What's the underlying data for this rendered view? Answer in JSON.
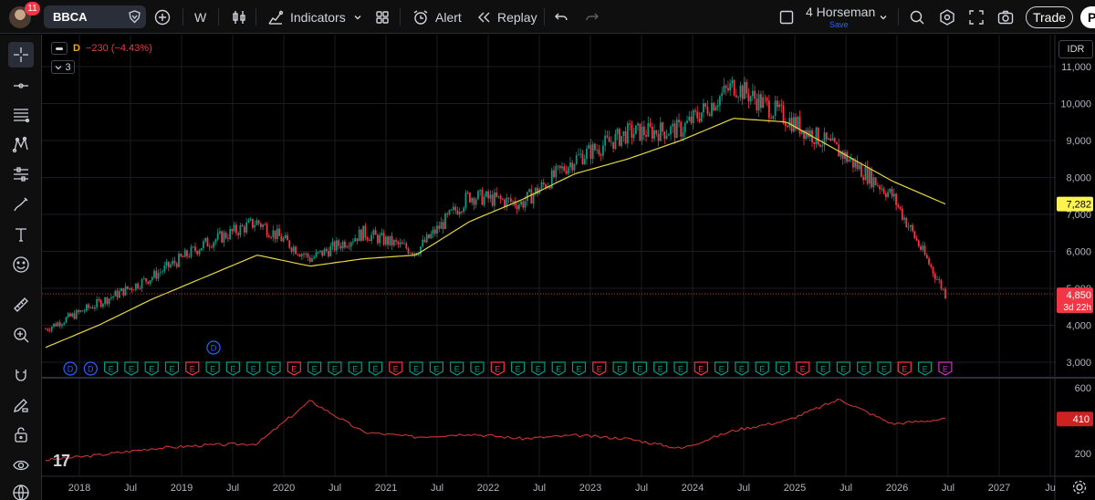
{
  "toolbar": {
    "notification_count": "11",
    "symbol": "BBCA",
    "interval": "W",
    "indicators_label": "Indicators",
    "alert_label": "Alert",
    "replay_label": "Replay",
    "layout_name": "4 Horseman",
    "save_label": "Save",
    "trade_label": "Trade",
    "publish_label": "P"
  },
  "legend": {
    "timeframe": "D",
    "change": "−230 (−4.43%)",
    "collapsed_count": "3"
  },
  "currency": "IDR",
  "price_axis": {
    "labels": [
      "11,000",
      "10,000",
      "9,000",
      "8,000",
      "7,000",
      "6,000",
      "5,000",
      "4,000",
      "3,000"
    ],
    "ma_label": "7,282",
    "last_label": "4,850",
    "countdown": "3d 22h"
  },
  "indicator_axis": {
    "labels": [
      "600",
      "400",
      "200"
    ],
    "last_label": "410"
  },
  "time_axis": {
    "labels": [
      "2018",
      "Jul",
      "2019",
      "Jul",
      "2020",
      "Jul",
      "2021",
      "Jul",
      "2022",
      "Jul",
      "2023",
      "Jul",
      "2024",
      "Jul",
      "2025",
      "Jul",
      "2026",
      "Jul",
      "2027",
      "Ju"
    ]
  },
  "events": {
    "markers": [
      "D",
      "D",
      "E",
      "E",
      "E",
      "E",
      "E",
      "E",
      "E",
      "E",
      "E",
      "E",
      "E",
      "E",
      "E",
      "E",
      "E",
      "E",
      "E",
      "E",
      "E",
      "E",
      "E",
      "E",
      "E",
      "E",
      "E",
      "E",
      "E",
      "E",
      "E",
      "E",
      "E",
      "E",
      "E",
      "E",
      "E",
      "E",
      "E",
      "E",
      "E",
      "E",
      "E",
      "E"
    ],
    "top_marker": "D"
  },
  "chart_data": {
    "type": "line",
    "title": "",
    "ylim": [
      2800,
      11300
    ],
    "x": [
      "2018",
      "2018-07",
      "2019",
      "2019-07",
      "2020",
      "2020-07",
      "2021",
      "2021-07",
      "2022",
      "2022-07",
      "2023",
      "2023-07",
      "2024",
      "2024-07",
      "2025",
      "2025-07",
      "2026",
      "2026-07"
    ],
    "series": [
      {
        "values": [
          3900,
          4600,
          5300,
          6200,
          6800,
          5800,
          6500,
          6000,
          7500,
          7300,
          8500,
          9200,
          9300,
          10500,
          9600,
          8700,
          7500,
          4850
        ]
      },
      {
        "values": [
          3400,
          4000,
          4700,
          5300,
          5900,
          5600,
          5800,
          5900,
          6800,
          7400,
          8100,
          8500,
          9000,
          9600,
          9500,
          8700,
          7900,
          7282
        ]
      }
    ],
    "indicator": {
      "ylim": [
        120,
        640
      ],
      "values": [
        160,
        190,
        230,
        250,
        260,
        520,
        330,
        300,
        320,
        290,
        310,
        290,
        230,
        340,
        400,
        530,
        380,
        410
      ]
    },
    "colors": {
      "up": "#089981",
      "down": "#f23645",
      "ma": "#e8d63f",
      "indicator": "#cc3333",
      "ma_tag": "#fff44f",
      "last_tag": "#f23645"
    },
    "grid": true
  }
}
